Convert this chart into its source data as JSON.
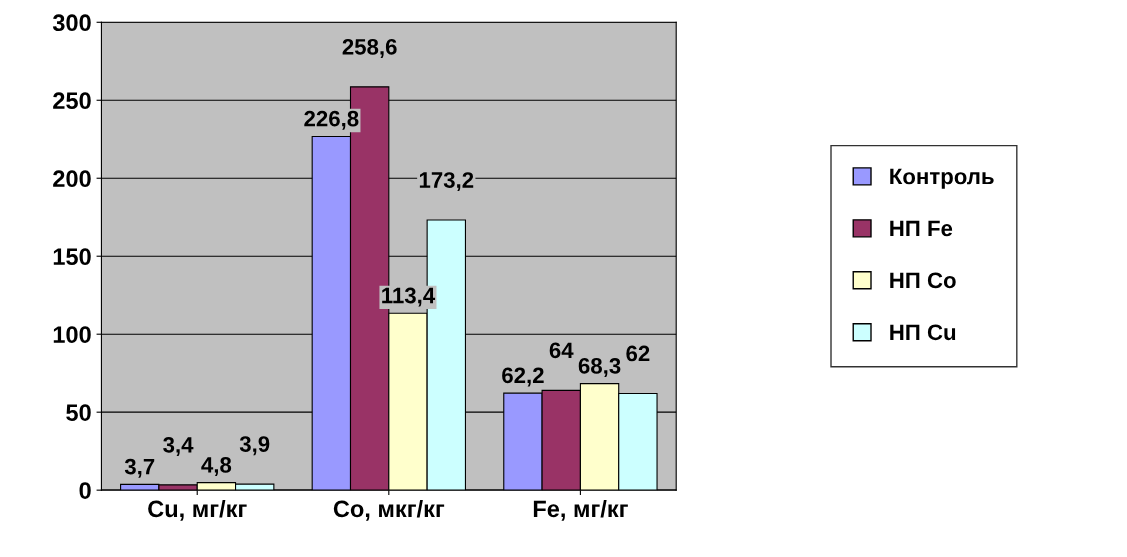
{
  "chart_data": {
    "type": "bar",
    "categories": [
      "Cu, мг/кг",
      "Co, мкг/кг",
      "Fe, мг/кг"
    ],
    "series": [
      {
        "name": "Контроль",
        "color": "#9999ff",
        "values": [
          3.7,
          226.8,
          62.2
        ],
        "value_labels": [
          "3,7",
          "226,8",
          "62,2"
        ]
      },
      {
        "name": "НП Fe",
        "color": "#993366",
        "values": [
          3.4,
          258.6,
          64
        ],
        "value_labels": [
          "3,4",
          "258,6",
          "64"
        ]
      },
      {
        "name": "НП Co",
        "color": "#ffffcc",
        "values": [
          4.8,
          113.4,
          68.3
        ],
        "value_labels": [
          "4,8",
          "113,4",
          "68,3"
        ]
      },
      {
        "name": "НП Cu",
        "color": "#ccffff",
        "values": [
          3.9,
          173.2,
          62
        ],
        "value_labels": [
          "3,9",
          "173,2",
          "62"
        ]
      }
    ],
    "ylim": [
      0,
      300
    ],
    "yticks": [
      0,
      50,
      100,
      150,
      200,
      250,
      300
    ],
    "grid": "y",
    "legend": "right"
  }
}
